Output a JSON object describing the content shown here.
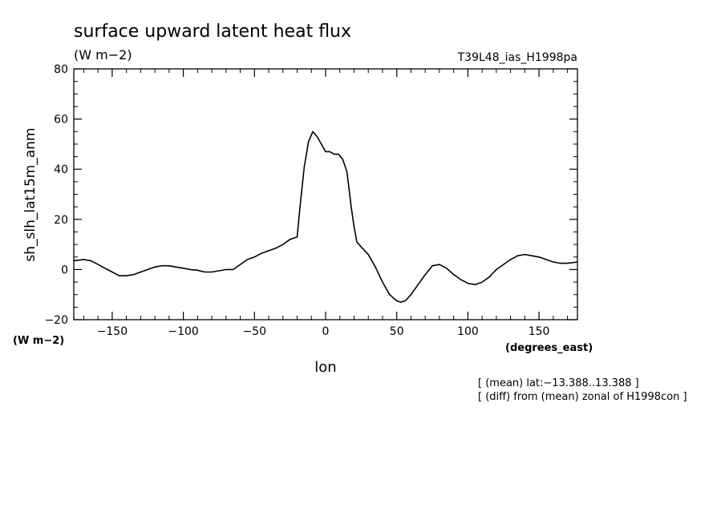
{
  "chart_data": {
    "type": "line",
    "title": "surface upward latent heat flux",
    "units_top": "(W m−2)",
    "run_label": "T39L48_ias_H1998pa",
    "ylabel": "sh_slh_lat15m_anm",
    "yunits": "(W m−2)",
    "xlabel": "lon",
    "xunits": "(degrees_east)",
    "xlim": [
      -177,
      177
    ],
    "ylim": [
      -20,
      80
    ],
    "xticks": [
      -150,
      -100,
      -50,
      0,
      50,
      100,
      150
    ],
    "xtick_labels": [
      "−150",
      "−100",
      "−50",
      "0",
      "50",
      "100",
      "150"
    ],
    "yticks": [
      -20,
      0,
      20,
      40,
      60,
      80
    ],
    "ytick_labels": [
      "−20",
      "0",
      "20",
      "40",
      "60",
      "80"
    ],
    "grid": false,
    "notes": [
      "[ (mean) lat:−13.388..13.388 ]",
      "[ (diff) from (mean) zonal of H1998con ]"
    ],
    "series": [
      {
        "x": [
          -177,
          -170,
          -165,
          -160,
          -155,
          -150,
          -145,
          -140,
          -135,
          -130,
          -125,
          -120,
          -115,
          -110,
          -105,
          -100,
          -95,
          -90,
          -85,
          -80,
          -75,
          -70,
          -65,
          -60,
          -55,
          -50,
          -45,
          -40,
          -35,
          -30,
          -25,
          -20,
          -18,
          -15,
          -12,
          -9,
          -6,
          -3,
          0,
          3,
          6,
          9,
          12,
          15,
          18,
          20,
          22,
          25,
          30,
          35,
          40,
          45,
          50,
          53,
          56,
          60,
          65,
          70,
          75,
          80,
          85,
          90,
          95,
          100,
          105,
          110,
          115,
          120,
          125,
          130,
          135,
          140,
          145,
          150,
          155,
          160,
          165,
          170,
          177
        ],
        "y": [
          3.5,
          4,
          3.5,
          2,
          0.5,
          -1,
          -2.5,
          -2.5,
          -2,
          -1,
          0,
          1,
          1.5,
          1.5,
          1,
          0.5,
          0,
          -0.3,
          -1,
          -1,
          -0.5,
          0,
          0,
          2,
          4,
          5,
          6.5,
          7.5,
          8.5,
          10,
          12,
          13,
          25,
          41,
          51,
          55,
          53,
          50,
          47,
          47,
          46,
          46,
          44,
          39,
          25,
          17,
          11,
          9,
          6,
          1,
          -5,
          -10,
          -12.5,
          -13,
          -12.5,
          -10,
          -6,
          -2,
          1.5,
          2,
          0.5,
          -2,
          -4,
          -5.5,
          -6,
          -5,
          -3,
          0,
          2,
          4,
          5.5,
          6,
          5.5,
          5,
          4,
          3,
          2.5,
          2.5,
          3
        ]
      }
    ]
  }
}
